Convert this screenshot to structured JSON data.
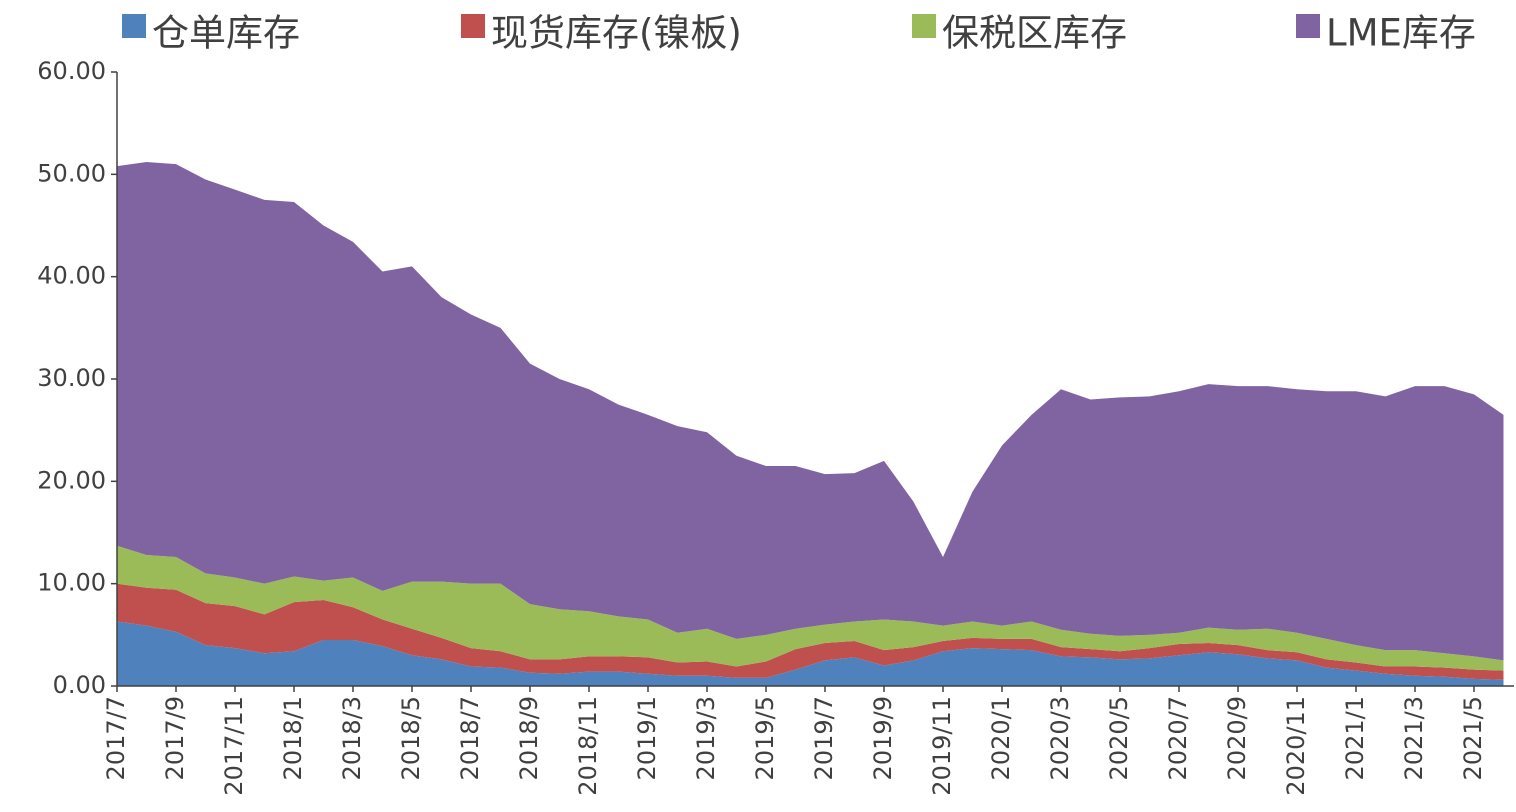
{
  "chart_data": {
    "type": "stacked_area",
    "categories": [
      "2017/7",
      null,
      "2017/9",
      null,
      "2017/11",
      null,
      "2018/1",
      null,
      "2018/3",
      null,
      "2018/5",
      null,
      "2018/7",
      null,
      "2018/9",
      null,
      "2018/11",
      null,
      "2019/1",
      null,
      "2019/3",
      null,
      "2019/5",
      null,
      "2019/7",
      null,
      "2019/9",
      null,
      "2019/11",
      null,
      "2020/1",
      null,
      "2020/3",
      null,
      "2020/5",
      null,
      "2020/7",
      null,
      "2020/9",
      null,
      "2020/11",
      null,
      "2021/1",
      null,
      "2021/3",
      null,
      "2021/5",
      null
    ],
    "series": [
      {
        "name": "仓单库存",
        "color": "#4f81bd",
        "values": [
          6.3,
          5.9,
          5.3,
          4.0,
          3.7,
          3.2,
          3.4,
          4.5,
          4.5,
          3.9,
          3.0,
          2.6,
          1.9,
          1.8,
          1.3,
          1.2,
          1.4,
          1.4,
          1.2,
          1.0,
          1.0,
          0.8,
          0.8,
          1.6,
          2.5,
          2.8,
          2.0,
          2.5,
          3.4,
          3.7,
          3.6,
          3.5,
          2.9,
          2.8,
          2.6,
          2.7,
          3.0,
          3.3,
          3.1,
          2.7,
          2.5,
          1.8,
          1.5,
          1.2,
          1.0,
          0.9,
          0.7,
          0.6
        ]
      },
      {
        "name": "现货库存(镍板)",
        "color": "#c0504d",
        "values": [
          3.7,
          3.7,
          4.1,
          4.1,
          4.1,
          3.8,
          4.8,
          3.9,
          3.2,
          2.6,
          2.6,
          2.1,
          1.8,
          1.6,
          1.3,
          1.4,
          1.5,
          1.5,
          1.6,
          1.3,
          1.4,
          1.1,
          1.6,
          2.0,
          1.7,
          1.6,
          1.5,
          1.3,
          1.0,
          1.0,
          1.0,
          1.1,
          0.9,
          0.8,
          0.8,
          1.0,
          1.1,
          0.9,
          0.9,
          0.8,
          0.8,
          0.8,
          0.8,
          0.7,
          0.9,
          0.9,
          0.9,
          0.9
        ]
      },
      {
        "name": "保税区库存",
        "color": "#9bbb59",
        "values": [
          3.7,
          3.2,
          3.2,
          2.9,
          2.8,
          3.0,
          2.5,
          1.9,
          2.9,
          2.8,
          4.6,
          5.5,
          6.3,
          6.6,
          5.4,
          4.9,
          4.4,
          3.9,
          3.7,
          2.9,
          3.2,
          2.7,
          2.6,
          2.0,
          1.8,
          1.9,
          3.0,
          2.5,
          1.5,
          1.6,
          1.3,
          1.7,
          1.7,
          1.5,
          1.5,
          1.3,
          1.1,
          1.5,
          1.5,
          2.1,
          1.9,
          2.0,
          1.7,
          1.6,
          1.6,
          1.4,
          1.3,
          1.0
        ]
      },
      {
        "name": "LME库存",
        "color": "#8064a2",
        "values": [
          37.1,
          38.4,
          38.4,
          38.5,
          37.9,
          37.5,
          36.6,
          34.7,
          32.8,
          31.2,
          30.8,
          27.8,
          26.3,
          25.0,
          23.5,
          22.5,
          21.7,
          20.7,
          20.0,
          20.2,
          19.2,
          17.9,
          16.5,
          15.9,
          14.7,
          14.5,
          15.5,
          11.7,
          6.7,
          12.7,
          17.6,
          20.2,
          23.5,
          22.9,
          23.3,
          23.3,
          23.6,
          23.8,
          23.8,
          23.7,
          23.8,
          24.2,
          24.8,
          24.8,
          25.8,
          26.1,
          25.6,
          24.0
        ]
      }
    ],
    "ylim": [
      0,
      60
    ],
    "yticks": [
      {
        "value": 0,
        "label": "0.00"
      },
      {
        "value": 10,
        "label": "10.00"
      },
      {
        "value": 20,
        "label": "20.00"
      },
      {
        "value": 30,
        "label": "30.00"
      },
      {
        "value": 40,
        "label": "40.00"
      },
      {
        "value": 50,
        "label": "50.00"
      },
      {
        "value": 60,
        "label": "60.00"
      }
    ],
    "legend": "top"
  }
}
